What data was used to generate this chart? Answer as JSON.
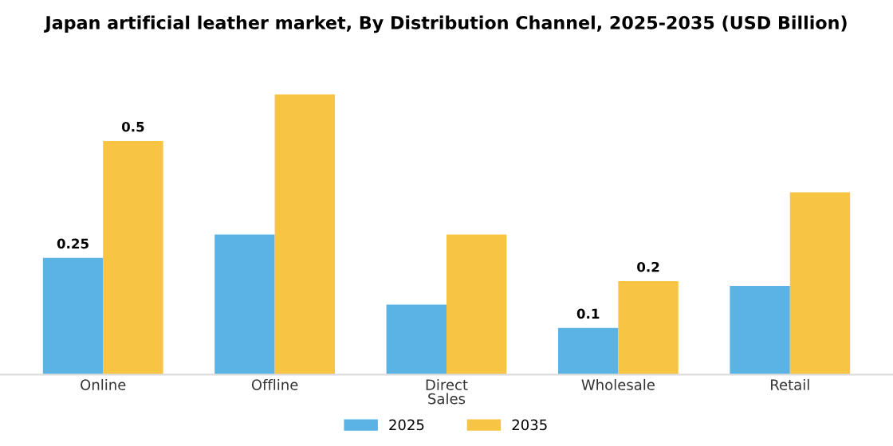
{
  "chart_data": {
    "type": "bar",
    "title": "Japan artificial leather market, By Distribution Channel, 2025-2035 (USD Billion)",
    "categories": [
      "Online",
      "Offline",
      "Direct\nSales",
      "Wholesale",
      "Retail"
    ],
    "series": [
      {
        "name": "2025",
        "color": "#5ab2e5",
        "values": [
          0.25,
          0.3,
          0.15,
          0.1,
          0.19
        ],
        "value_labels": [
          "0.25",
          null,
          null,
          "0.1",
          null
        ]
      },
      {
        "name": "2035",
        "color": "#f8c444",
        "values": [
          0.5,
          0.6,
          0.3,
          0.2,
          0.39
        ],
        "value_labels": [
          "0.5",
          null,
          null,
          "0.2",
          null
        ]
      }
    ],
    "legend": "bottom",
    "grid": false
  }
}
